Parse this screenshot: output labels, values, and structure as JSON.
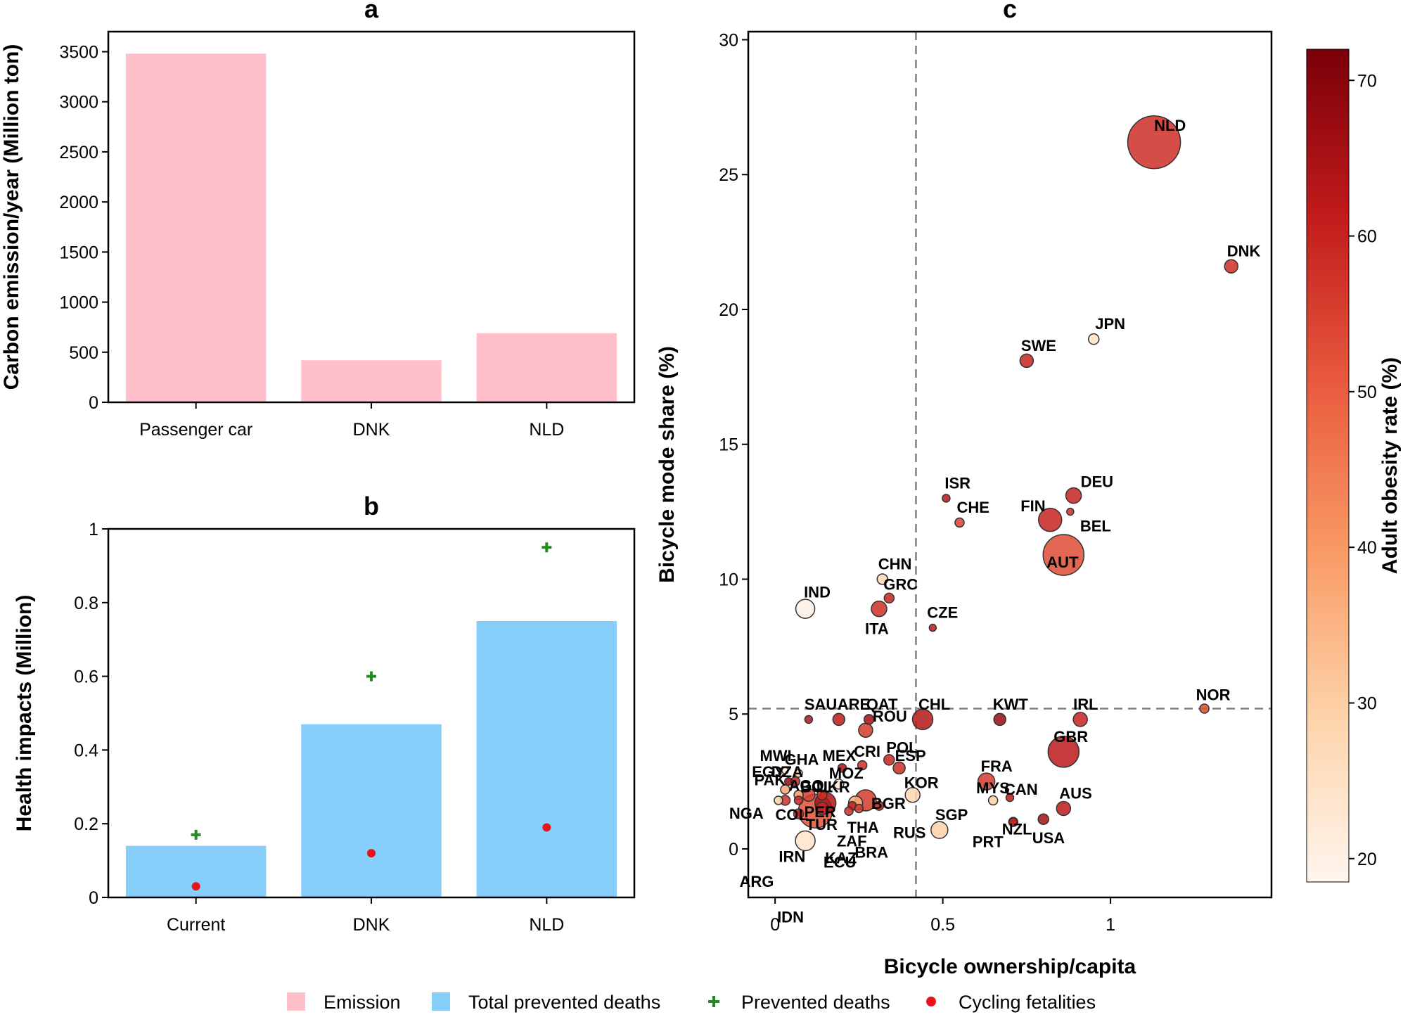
{
  "colors": {
    "emission": "#ffc0cb",
    "total_prevented": "#87cefa",
    "prevented_marker": "#228b22",
    "fatality_marker": "#e8141c",
    "frame": "#000000",
    "reference_line": "#808080"
  },
  "legend": {
    "placement": "bottom-center",
    "items": [
      {
        "label": "Emission",
        "symbol": "square",
        "color": "#ffc0cb"
      },
      {
        "label": "Total prevented deaths",
        "symbol": "square",
        "color": "#87cefa"
      },
      {
        "label": "Prevented deaths",
        "symbol": "plus",
        "color": "#228b22"
      },
      {
        "label": "Cycling fetalities",
        "symbol": "dot",
        "color": "#e8141c"
      }
    ]
  },
  "chart_data": [
    {
      "id": "a",
      "panel_label": "a",
      "type": "bar",
      "ylabel": "Carbon emission/year (Million ton)",
      "xlabel": "",
      "categories": [
        "Passenger car",
        "DNK",
        "NLD"
      ],
      "values": [
        3480,
        420,
        690
      ],
      "ylim": [
        0,
        3700
      ],
      "yticks": [
        0,
        500,
        1000,
        1500,
        2000,
        2500,
        3000,
        3500
      ],
      "grid": false,
      "color": "#ffc0cb"
    },
    {
      "id": "b",
      "panel_label": "b",
      "type": "bar",
      "ylabel": "Health impacts (Million)",
      "xlabel": "",
      "categories": [
        "Current",
        "DNK",
        "NLD"
      ],
      "ylim": [
        0,
        1.0
      ],
      "yticks": [
        0,
        0.2,
        0.4,
        0.6,
        0.8,
        1
      ],
      "grid": false,
      "series": [
        {
          "name": "Total prevented deaths",
          "kind": "bar",
          "color": "#87cefa",
          "values": [
            0.14,
            0.47,
            0.75
          ]
        },
        {
          "name": "Prevented deaths",
          "kind": "marker-plus",
          "color": "#228b22",
          "values": [
            0.17,
            0.6,
            0.95
          ]
        },
        {
          "name": "Cycling fetalities",
          "kind": "marker-dot",
          "color": "#e8141c",
          "values": [
            0.03,
            0.12,
            0.19
          ]
        }
      ]
    },
    {
      "id": "c",
      "panel_label": "c",
      "type": "scatter",
      "xlabel": "Bicycle ownership/capita",
      "ylabel": "Bicycle mode share (%)",
      "xlim": [
        -0.08,
        1.48
      ],
      "ylim": [
        -1.8,
        30.3
      ],
      "xticks": [
        0,
        0.5,
        1
      ],
      "xtick_labels": [
        "0",
        "0.5",
        "1"
      ],
      "yticks": [
        0,
        5,
        10,
        15,
        20,
        25,
        30
      ],
      "grid": false,
      "reference_lines": {
        "x": 0.42,
        "y": 5.2,
        "style": "dashed"
      },
      "colorbar": {
        "label": "Adult obesity rate (%)",
        "range": [
          18.5,
          72
        ],
        "ticks": [
          20,
          30,
          40,
          50,
          60,
          70
        ],
        "colormap": "Reds"
      },
      "points": [
        {
          "label": "NLD",
          "x": 1.13,
          "y": 26.2,
          "size": 75,
          "obesity": 58
        },
        {
          "label": "DNK",
          "x": 1.36,
          "y": 21.6,
          "size": 19,
          "obesity": 58
        },
        {
          "label": "JPN",
          "x": 0.95,
          "y": 18.9,
          "size": 15,
          "obesity": 25
        },
        {
          "label": "SWE",
          "x": 0.75,
          "y": 18.1,
          "size": 19,
          "obesity": 60
        },
        {
          "label": "ISR",
          "x": 0.51,
          "y": 13.0,
          "size": 11,
          "obesity": 63
        },
        {
          "label": "DEU",
          "x": 0.89,
          "y": 13.1,
          "size": 22,
          "obesity": 60
        },
        {
          "label": "FIN",
          "x": 0.82,
          "y": 12.2,
          "size": 33,
          "obesity": 60
        },
        {
          "label": "BEL",
          "x": 0.88,
          "y": 12.5,
          "size": 10,
          "obesity": 58
        },
        {
          "label": "CHE",
          "x": 0.55,
          "y": 12.1,
          "size": 13,
          "obesity": 55
        },
        {
          "label": "AUT",
          "x": 0.86,
          "y": 10.9,
          "size": 58,
          "obesity": 53
        },
        {
          "label": "CHN",
          "x": 0.32,
          "y": 10.0,
          "size": 15,
          "obesity": 28
        },
        {
          "label": "GRC",
          "x": 0.34,
          "y": 9.3,
          "size": 14,
          "obesity": 60
        },
        {
          "label": "IND",
          "x": 0.09,
          "y": 8.9,
          "size": 27,
          "obesity": 20
        },
        {
          "label": "ITA",
          "x": 0.31,
          "y": 8.9,
          "size": 22,
          "obesity": 58
        },
        {
          "label": "CZE",
          "x": 0.47,
          "y": 8.2,
          "size": 10,
          "obesity": 62
        },
        {
          "label": "NOR",
          "x": 1.28,
          "y": 5.2,
          "size": 13,
          "obesity": 53
        },
        {
          "label": "SAU",
          "x": 0.1,
          "y": 4.8,
          "size": 11,
          "obesity": 64
        },
        {
          "label": "ARE",
          "x": 0.19,
          "y": 4.8,
          "size": 17,
          "obesity": 62
        },
        {
          "label": "QAT",
          "x": 0.28,
          "y": 4.8,
          "size": 14,
          "obesity": 66
        },
        {
          "label": "CHL",
          "x": 0.44,
          "y": 4.8,
          "size": 29,
          "obesity": 63
        },
        {
          "label": "KWT",
          "x": 0.67,
          "y": 4.8,
          "size": 17,
          "obesity": 68
        },
        {
          "label": "IRL",
          "x": 0.91,
          "y": 4.8,
          "size": 20,
          "obesity": 60
        },
        {
          "label": "ROU",
          "x": 0.27,
          "y": 4.4,
          "size": 20,
          "obesity": 56
        },
        {
          "label": "GBR",
          "x": 0.86,
          "y": 3.6,
          "size": 44,
          "obesity": 62
        },
        {
          "label": "POL",
          "x": 0.34,
          "y": 3.3,
          "size": 15,
          "obesity": 60
        },
        {
          "label": "CRI",
          "x": 0.26,
          "y": 3.1,
          "size": 13,
          "obesity": 58
        },
        {
          "label": "ESP",
          "x": 0.37,
          "y": 3.0,
          "size": 17,
          "obesity": 58
        },
        {
          "label": "MEX",
          "x": 0.2,
          "y": 3.0,
          "size": 12,
          "obesity": 65
        },
        {
          "label": "MWI",
          "x": 0.03,
          "y": 2.9,
          "size": 9,
          "obesity": 22
        },
        {
          "label": "GHA",
          "x": 0.07,
          "y": 2.8,
          "size": 11,
          "obesity": 30
        },
        {
          "label": "EGY",
          "x": 0.04,
          "y": 2.5,
          "size": 11,
          "obesity": 68
        },
        {
          "label": "DZA",
          "x": 0.06,
          "y": 2.5,
          "size": 13,
          "obesity": 60
        },
        {
          "label": "MOZ",
          "x": 0.19,
          "y": 2.4,
          "size": 14,
          "obesity": 22
        },
        {
          "label": "KOR",
          "x": 0.41,
          "y": 2.0,
          "size": 21,
          "obesity": 28
        },
        {
          "label": "FRA",
          "x": 0.63,
          "y": 2.5,
          "size": 24,
          "obesity": 56
        },
        {
          "label": "PAK",
          "x": 0.03,
          "y": 2.2,
          "size": 13,
          "obesity": 38
        },
        {
          "label": "AGO",
          "x": 0.07,
          "y": 2.0,
          "size": 13,
          "obesity": 40
        },
        {
          "label": "BOL",
          "x": 0.1,
          "y": 2.0,
          "size": 18,
          "obesity": 55
        },
        {
          "label": "UKR",
          "x": 0.14,
          "y": 2.0,
          "size": 14,
          "obesity": 58
        },
        {
          "label": "BGR",
          "x": 0.27,
          "y": 1.8,
          "size": 30,
          "obesity": 56
        },
        {
          "label": "MYS",
          "x": 0.65,
          "y": 1.8,
          "size": 13,
          "obesity": 30
        },
        {
          "label": "CAN",
          "x": 0.7,
          "y": 1.9,
          "size": 11,
          "obesity": 62
        },
        {
          "label": "NGA",
          "x": 0.01,
          "y": 1.8,
          "size": 12,
          "obesity": 30
        },
        {
          "label": "COL",
          "x": 0.03,
          "y": 1.8,
          "size": 14,
          "obesity": 58
        },
        {
          "label": "PER",
          "x": 0.07,
          "y": 1.8,
          "size": 12,
          "obesity": 60
        },
        {
          "label": "TUR",
          "x": 0.15,
          "y": 1.7,
          "size": 30,
          "obesity": 64
        },
        {
          "label": "THA",
          "x": 0.24,
          "y": 1.7,
          "size": 20,
          "obesity": 36
        },
        {
          "label": "RUS",
          "x": 0.31,
          "y": 1.6,
          "size": 13,
          "obesity": 60
        },
        {
          "label": "ZAF",
          "x": 0.23,
          "y": 1.6,
          "size": 12,
          "obesity": 62
        },
        {
          "label": "BRA",
          "x": 0.25,
          "y": 1.5,
          "size": 12,
          "obesity": 56
        },
        {
          "label": "KAZ",
          "x": 0.22,
          "y": 1.4,
          "size": 12,
          "obesity": 58
        },
        {
          "label": "IRN",
          "x": 0.12,
          "y": 1.4,
          "size": 48,
          "obesity": 52
        },
        {
          "label": "ECU",
          "x": 0.14,
          "y": 1.5,
          "size": 18,
          "obesity": 60
        },
        {
          "label": "ARG",
          "x": 0.07,
          "y": 1.3,
          "size": 14,
          "obesity": 58
        },
        {
          "label": "IDN",
          "x": 0.09,
          "y": 0.3,
          "size": 28,
          "obesity": 24
        },
        {
          "label": "AUS",
          "x": 0.86,
          "y": 1.5,
          "size": 20,
          "obesity": 62
        },
        {
          "label": "SGP",
          "x": 0.49,
          "y": 0.7,
          "size": 24,
          "obesity": 30
        },
        {
          "label": "NZL",
          "x": 0.71,
          "y": 1.0,
          "size": 13,
          "obesity": 60
        },
        {
          "label": "USA",
          "x": 0.8,
          "y": 1.1,
          "size": 15,
          "obesity": 66
        },
        {
          "label": "PRT",
          "x": 0.71,
          "y": 1.0,
          "size": 11,
          "obesity": 60
        }
      ]
    }
  ]
}
